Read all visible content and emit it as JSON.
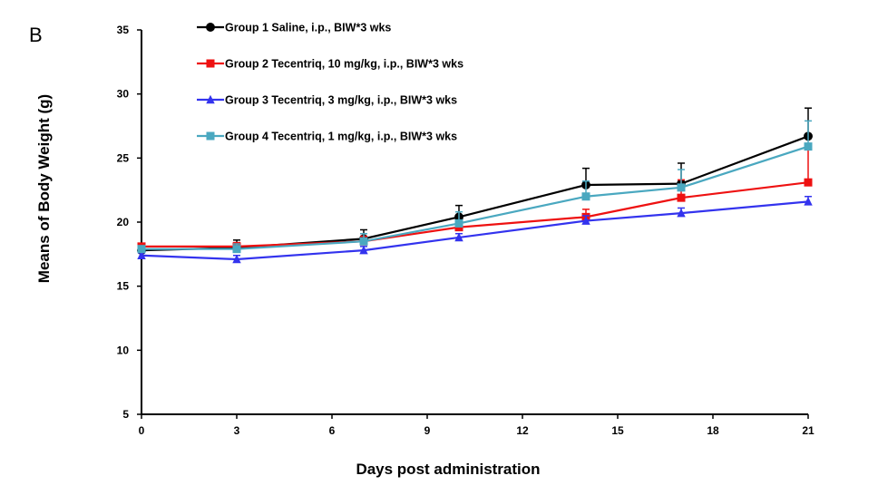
{
  "panel_label": "B",
  "chart_data": {
    "type": "line",
    "xlabel": "Days post administration",
    "ylabel": "Means of Body Weight (g)",
    "xlim": [
      0,
      21
    ],
    "ylim": [
      5,
      35
    ],
    "xticks": [
      0,
      3,
      6,
      9,
      12,
      15,
      18,
      21
    ],
    "yticks": [
      5,
      10,
      15,
      20,
      25,
      30,
      35
    ],
    "x": [
      0,
      3,
      7,
      10,
      14,
      17,
      21
    ],
    "legend_position": "top-left",
    "series": [
      {
        "name": "Group 1 Saline, i.p., BIW*3 wks",
        "color": "#000000",
        "marker": "circle",
        "values": [
          17.8,
          18.0,
          18.7,
          20.4,
          22.9,
          23.0,
          26.7
        ],
        "errors": [
          0.3,
          0.6,
          0.7,
          0.9,
          1.3,
          1.6,
          2.2
        ]
      },
      {
        "name": "Group 2 Tecentriq, 10 mg/kg, i.p., BIW*3 wks",
        "color": "#ee1111",
        "marker": "square",
        "values": [
          18.1,
          18.1,
          18.5,
          19.6,
          20.4,
          21.9,
          23.1
        ],
        "errors": [
          0.2,
          0.3,
          0.4,
          0.5,
          0.6,
          1.4,
          2.6
        ]
      },
      {
        "name": "Group 3 Tecentriq, 3 mg/kg, i.p., BIW*3 wks",
        "color": "#3333ee",
        "marker": "triangle",
        "values": [
          17.4,
          17.1,
          17.8,
          18.8,
          20.1,
          20.7,
          21.6
        ],
        "errors": [
          0.2,
          0.3,
          0.3,
          0.3,
          0.4,
          0.4,
          0.4
        ]
      },
      {
        "name": "Group 4 Tecentriq, 1 mg/kg, i.p., BIW*3 wks",
        "color": "#4aa8c0",
        "marker": "square",
        "values": [
          17.9,
          17.9,
          18.5,
          19.9,
          22.0,
          22.7,
          25.9
        ],
        "errors": [
          0.2,
          0.4,
          0.6,
          0.9,
          1.2,
          1.4,
          2.0
        ]
      }
    ]
  }
}
